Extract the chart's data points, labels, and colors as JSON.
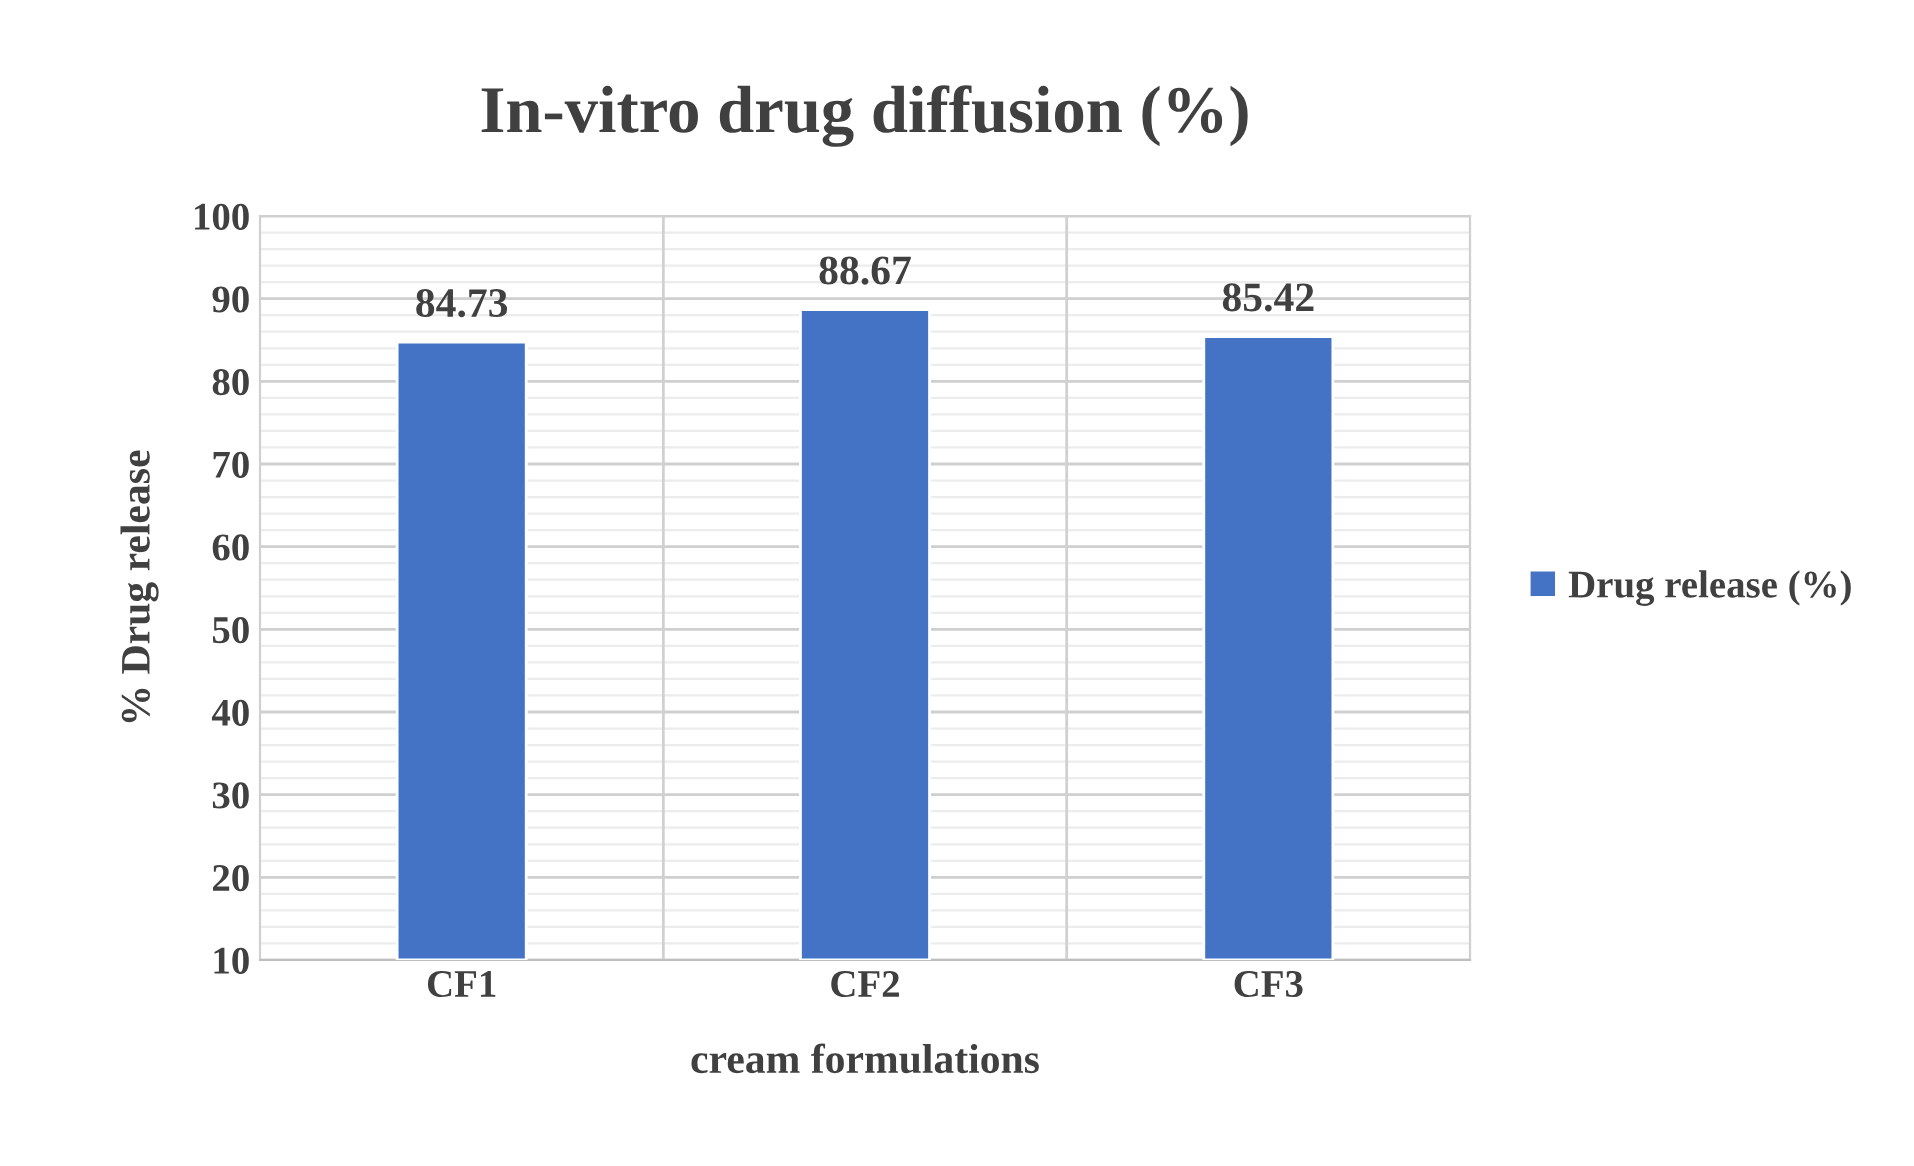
{
  "chart_data": {
    "type": "bar",
    "title": "In-vitro drug diffusion (%)",
    "xlabel": "cream formulations",
    "ylabel": "% Drug release",
    "categories": [
      "CF1",
      "CF2",
      "CF3"
    ],
    "series": [
      {
        "name": "Drug release (%)",
        "color": "#4472c4",
        "values": [
          84.73,
          88.67,
          85.42
        ]
      }
    ],
    "ylim": [
      10,
      100
    ],
    "yticks": [
      10,
      20,
      30,
      40,
      50,
      60,
      70,
      80,
      90,
      100
    ],
    "grid": true,
    "legend": "right",
    "data_labels": true
  }
}
